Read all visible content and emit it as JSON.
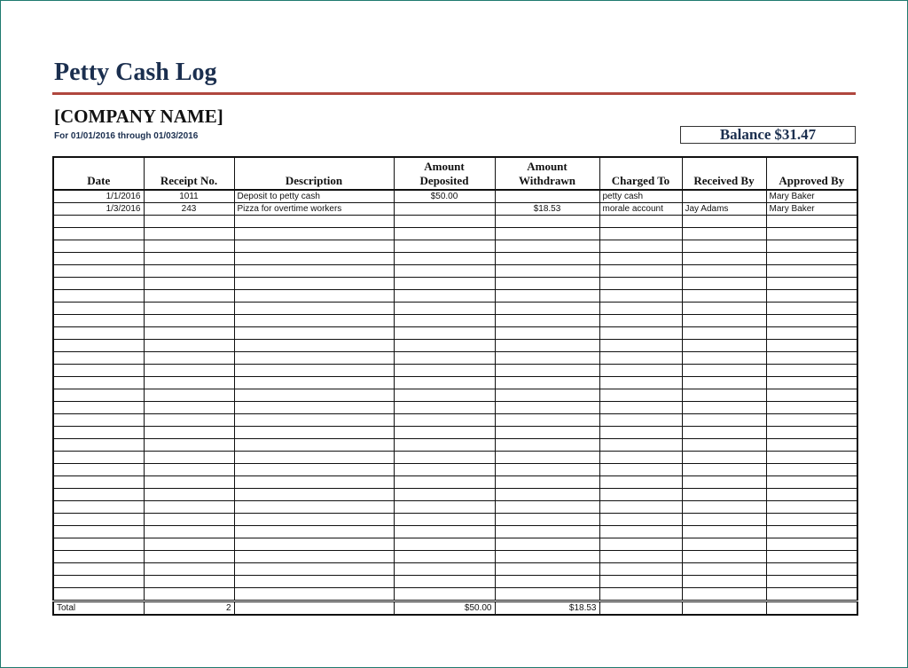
{
  "title": "Petty Cash Log",
  "company": "[COMPANY NAME]",
  "period": "For 01/01/2016 through 01/03/2016",
  "balance": {
    "label": "Balance",
    "value": "$31.47"
  },
  "colors": {
    "title": "#1b2f4f",
    "rule": "#b0473e",
    "frame": "#1f7a6f"
  },
  "columns": [
    "Date",
    "Receipt No.",
    "Description",
    "Amount Deposited",
    "Amount Withdrawn",
    "Charged To",
    "Received By",
    "Approved By"
  ],
  "rows": [
    {
      "date": "1/1/2016",
      "receipt": "1011",
      "description": "Deposit to petty cash",
      "deposited": "$50.00",
      "withdrawn": "",
      "charged_to": "petty cash",
      "received_by": "",
      "approved_by": "Mary Baker"
    },
    {
      "date": "1/3/2016",
      "receipt": "243",
      "description": "Pizza for overtime workers",
      "deposited": "",
      "withdrawn": "$18.53",
      "charged_to": "morale account",
      "received_by": "Jay Adams",
      "approved_by": "Mary Baker"
    }
  ],
  "total": {
    "label": "Total",
    "count": "2",
    "deposited": "$50.00",
    "withdrawn": "$18.53"
  }
}
